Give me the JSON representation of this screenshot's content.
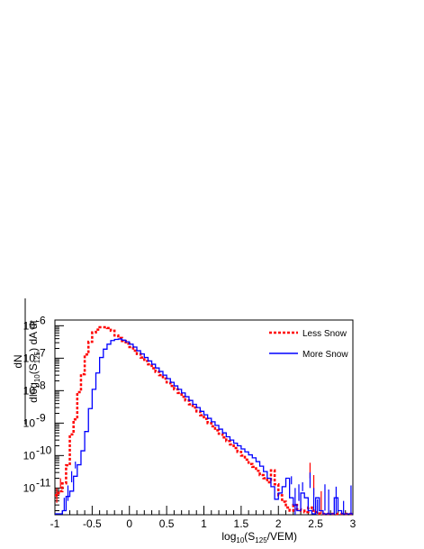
{
  "chart_data": {
    "type": "line",
    "x_axis": {
      "main": "log",
      "sub": "10",
      "mid": "(S",
      "sub2": "125",
      "tail": "/VEM)",
      "range": [
        -1,
        3
      ],
      "tick_labels": [
        "-1",
        "-0.5",
        "0",
        "0.5",
        "1",
        "1.5",
        "2",
        "2.5",
        "3"
      ],
      "tick_values": [
        -1,
        -0.5,
        0,
        0.5,
        1,
        1.5,
        2,
        2.5,
        3
      ]
    },
    "y_axis": {
      "numerator": "dN",
      "den_a": "dlog",
      "den_sub": "10",
      "den_b": "(S",
      "den_sub2": "125",
      "den_c": ") dA dt",
      "scale": "log",
      "range": [
        1.5e-12,
        1.5e-06
      ],
      "tick_base": "10",
      "tick_exponents": [
        "-11",
        "-10",
        "-9",
        "-8",
        "-7",
        "-6"
      ],
      "tick_values": [
        1e-11,
        1e-10,
        1e-09,
        1e-08,
        1e-07,
        1e-06
      ]
    },
    "legend": {
      "placement": "top-right"
    },
    "series": [
      {
        "name": "Less Snow",
        "color": "#ff0000",
        "style": "dotted",
        "bin_width": 0.05,
        "bin_start": -1.0,
        "values": [
          6e-12,
          8e-12,
          1.4e-11,
          5e-11,
          4.5e-10,
          1.3e-09,
          9e-09,
          3.2e-08,
          1.3e-07,
          3.2e-07,
          6.2e-07,
          7.6e-07,
          9e-07,
          9e-07,
          8.5e-07,
          7e-07,
          5e-07,
          4.2e-07,
          3.4e-07,
          2.8e-07,
          2.2e-07,
          1.7e-07,
          1.35e-07,
          1.05e-07,
          8.2e-08,
          6.5e-08,
          4.9e-08,
          3.8e-08,
          3e-08,
          2.35e-08,
          1.8e-08,
          1.4e-08,
          1.1e-08,
          8.5e-09,
          6.5e-09,
          5e-09,
          3.8e-09,
          3e-09,
          2.3e-09,
          1.75e-09,
          1.35e-09,
          1e-09,
          8e-10,
          6e-10,
          4.7e-10,
          3.6e-10,
          2.8e-10,
          2.2e-10,
          1.7e-10,
          1.3e-10,
          1e-10,
          7.5e-11,
          5.5e-11,
          4.5e-11,
          3.4e-11,
          2.5e-11,
          2e-11,
          1.5e-11,
          3.5e-11,
          1.3e-11,
          6e-12,
          3.8e-12,
          2.5e-12,
          2e-12,
          3e-12,
          2.2e-12,
          2e-12,
          1.8e-12,
          2.5e-12,
          2e-12,
          1.8e-12,
          1.6e-12,
          1.6e-12,
          1.6e-12,
          1.6e-12,
          1.6e-12,
          1.6e-12,
          1.6e-12,
          1.6e-12,
          1.6e-12
        ],
        "error_bins": [
          {
            "x": -0.975,
            "lo": 3.5e-12,
            "hi": 1e-11
          },
          {
            "x": -0.925,
            "lo": 1e-11,
            "hi": 2e-11
          },
          {
            "x": 2.425,
            "lo": 2e-11,
            "hi": 6e-11
          },
          {
            "x": 2.475,
            "lo": 6e-12,
            "hi": 2.5e-11
          },
          {
            "x": 2.575,
            "lo": 1.6e-12,
            "hi": 8e-12
          }
        ]
      },
      {
        "name": "More Snow",
        "color": "#0000ff",
        "style": "solid",
        "bin_width": 0.05,
        "bin_start": -1.0,
        "values": [
          1.6e-12,
          1.6e-12,
          2e-12,
          5.5e-12,
          8e-12,
          2.3e-11,
          5.2e-11,
          1.4e-10,
          5.5e-10,
          2.8e-09,
          1.1e-08,
          3.5e-08,
          1.05e-07,
          1.9e-07,
          2.7e-07,
          3.5e-07,
          3.8e-07,
          3.9e-07,
          3.6e-07,
          3.2e-07,
          2.7e-07,
          2.2e-07,
          1.7e-07,
          1.35e-07,
          1.05e-07,
          8.2e-08,
          6.5e-08,
          5e-08,
          3.9e-08,
          3e-08,
          2.35e-08,
          1.8e-08,
          1.4e-08,
          1.1e-08,
          8.5e-09,
          6.5e-09,
          5e-09,
          3.8e-09,
          3e-09,
          2.3e-09,
          1.8e-09,
          1.4e-09,
          1.1e-09,
          8.5e-10,
          6.5e-10,
          5e-10,
          3.8e-10,
          3e-10,
          2.4e-10,
          2e-10,
          1.6e-10,
          1.3e-10,
          1.05e-10,
          8.5e-11,
          6.5e-11,
          4.7e-11,
          3.2e-11,
          2e-11,
          1.1e-11,
          4.5e-12,
          7e-12,
          1.1e-11,
          2e-11,
          5e-12,
          3e-12,
          2e-12,
          7e-12,
          5e-12,
          2e-12,
          1.6e-12,
          5e-12,
          2e-12,
          1.6e-12,
          1.6e-12,
          1.6e-12,
          5e-12,
          2e-12,
          1.6e-12,
          1.6e-12,
          1.6e-12
        ],
        "error_bins": [
          {
            "x": -0.875,
            "lo": 2e-12,
            "hi": 5e-12
          },
          {
            "x": -0.825,
            "lo": 4e-12,
            "hi": 1.2e-11
          },
          {
            "x": -0.775,
            "lo": 1.5e-11,
            "hi": 3.3e-11
          },
          {
            "x": -0.725,
            "lo": 4e-11,
            "hi": 6.5e-11
          },
          {
            "x": 2.175,
            "lo": 1.3e-11,
            "hi": 2.3e-11
          },
          {
            "x": 2.225,
            "lo": 1e-12,
            "hi": 1e-11
          },
          {
            "x": 2.275,
            "lo": 4e-12,
            "hi": 1.3e-11
          },
          {
            "x": 2.325,
            "lo": 8e-12,
            "hi": 1.5e-11
          },
          {
            "x": 2.425,
            "lo": 1e-11,
            "hi": 3e-11
          },
          {
            "x": 2.475,
            "lo": 2e-12,
            "hi": 1e-11
          },
          {
            "x": 2.525,
            "lo": 1.6e-12,
            "hi": 4.5e-12
          },
          {
            "x": 2.625,
            "lo": 2e-12,
            "hi": 1.3e-11
          },
          {
            "x": 2.675,
            "lo": 1.6e-12,
            "hi": 9e-12
          },
          {
            "x": 2.775,
            "lo": 1.6e-12,
            "hi": 1.1e-11
          },
          {
            "x": 2.875,
            "lo": 1.6e-12,
            "hi": 4e-12
          },
          {
            "x": 2.975,
            "lo": 1.6e-12,
            "hi": 1.2e-11
          }
        ]
      }
    ]
  }
}
